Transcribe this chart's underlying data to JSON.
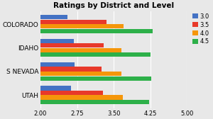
{
  "title": "Ratings by District and Level",
  "categories": [
    "UTAH",
    "S NEVADA",
    "IDAHO",
    "COLORADO"
  ],
  "series_labels": [
    "3.0",
    "3.5",
    "4.0",
    "4.5"
  ],
  "series": {
    "3.0": [
      2.63,
      2.7,
      2.68,
      2.55
    ],
    "3.5": [
      3.28,
      3.25,
      3.3,
      3.35
    ],
    "4.0": [
      3.68,
      3.65,
      3.65,
      3.7
    ],
    "4.5": [
      4.22,
      4.27,
      4.25,
      4.3
    ]
  },
  "bar_colors": [
    "#4472C4",
    "#E8392A",
    "#F5960A",
    "#2DB049"
  ],
  "xlim": [
    2.0,
    5.0
  ],
  "xticks": [
    2.0,
    2.75,
    3.5,
    4.25,
    5.0
  ],
  "background_color": "#E8E8E8",
  "plot_bg_color": "#E8E8E8",
  "grid_color": "#FFFFFF",
  "title_fontsize": 7.5,
  "tick_fontsize": 6,
  "label_fontsize": 6.5
}
